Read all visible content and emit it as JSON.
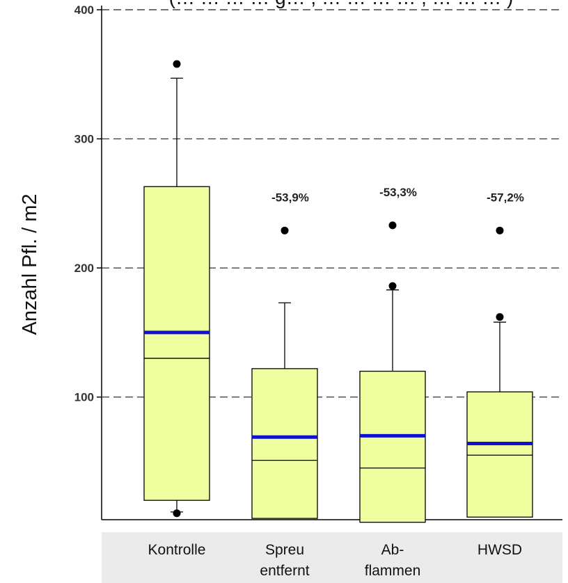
{
  "chart_data": {
    "type": "box",
    "title": "(… … … … g… , … … … … , … … … )",
    "ylabel": "Anzahl Pfl. / m2",
    "ylim": [
      5,
      400
    ],
    "yticks": [
      100,
      200,
      300,
      400
    ],
    "grid": "horizontal-dashed",
    "categories": [
      {
        "lines": [
          "Kontrolle"
        ]
      },
      {
        "lines": [
          "Spreu",
          "entfernt"
        ]
      },
      {
        "lines": [
          "Ab-",
          "flammen"
        ]
      },
      {
        "lines": [
          "HWSD"
        ]
      }
    ],
    "boxes": [
      {
        "whisker_low": 11,
        "q1": 20,
        "median": 130,
        "mean": 150,
        "q3": 263,
        "whisker_high": 347,
        "outliers": [
          358,
          10
        ],
        "change_label": ""
      },
      {
        "whisker_low": 6,
        "q1": 6,
        "median": 51,
        "mean": 69,
        "q3": 122,
        "whisker_high": 173,
        "outliers": [
          229
        ],
        "change_label": "-53,9%"
      },
      {
        "whisker_low": 3,
        "q1": 3,
        "median": 45,
        "mean": 70,
        "q3": 120,
        "whisker_high": 183,
        "outliers": [
          233,
          186
        ],
        "change_label": "-53,3%"
      },
      {
        "whisker_low": 7,
        "q1": 7,
        "median": 55,
        "mean": 64,
        "q3": 104,
        "whisker_high": 158,
        "outliers": [
          229,
          162
        ],
        "change_label": "-57,2%"
      }
    ],
    "colors": {
      "box_fill": "#efffa0",
      "mean_line": "#1010d0",
      "outline": "#000000",
      "axis_band": "#ebebeb"
    }
  }
}
